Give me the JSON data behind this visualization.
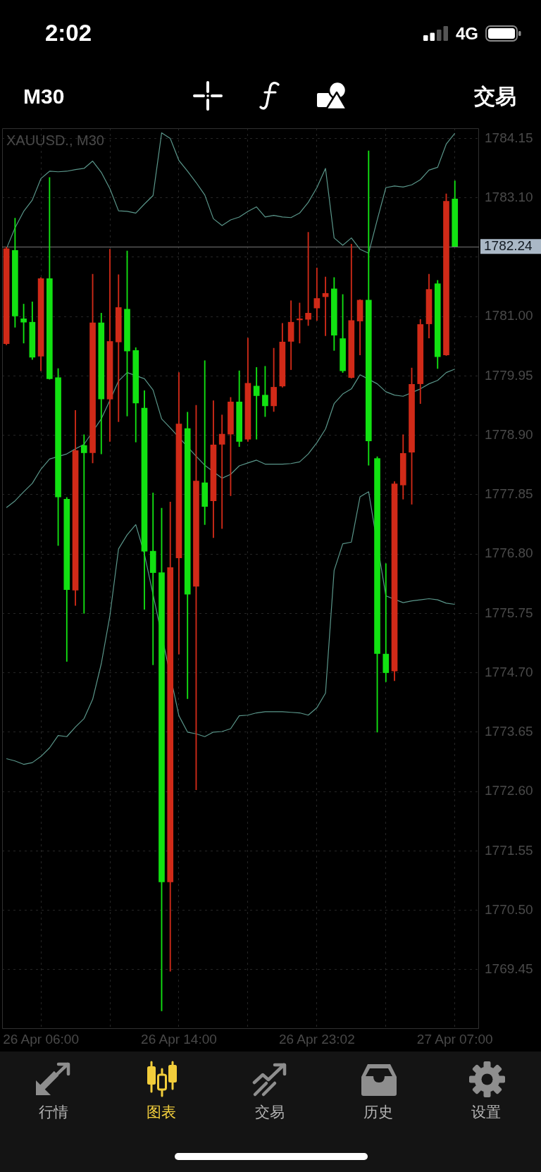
{
  "chart_data": {
    "type": "candlestick",
    "title": "XAUUSD., M30",
    "categories": [
      null,
      null,
      null,
      null,
      "26 Apr 06:00",
      null,
      null,
      null,
      null,
      null,
      null,
      null,
      null,
      null,
      null,
      null,
      null,
      null,
      null,
      null,
      "26 Apr 14:00",
      null,
      null,
      null,
      null,
      null,
      null,
      null,
      null,
      null,
      null,
      null,
      null,
      null,
      null,
      null,
      "26 Apr 23:02",
      null,
      null,
      null,
      null,
      null,
      null,
      null,
      null,
      null,
      null,
      null,
      null,
      null,
      null,
      null,
      "27 Apr 07:00"
    ],
    "ohlc": [
      [
        1780.52,
        1782.23,
        1780.5,
        1782.2
      ],
      [
        1782.17,
        1782.74,
        1780.81,
        1781.01
      ],
      [
        1780.96,
        1781.22,
        1780.53,
        1780.9
      ],
      [
        1780.9,
        1781.26,
        1780.24,
        1780.28
      ],
      [
        1780.3,
        1781.69,
        1780.04,
        1781.67
      ],
      [
        1781.67,
        1783.46,
        1779.89,
        1779.9
      ],
      [
        1779.92,
        1780.08,
        1776.95,
        1777.81
      ],
      [
        1777.77,
        1777.8,
        1774.9,
        1776.17
      ],
      [
        1776.16,
        1779.34,
        1775.89,
        1778.63
      ],
      [
        1778.72,
        1778.91,
        1775.75,
        1778.59
      ],
      [
        1778.59,
        1781.75,
        1778.41,
        1780.89
      ],
      [
        1780.89,
        1781.06,
        1778.57,
        1779.54
      ],
      [
        1779.54,
        1782.19,
        1778.79,
        1780.56
      ],
      [
        1780.55,
        1781.74,
        1779.14,
        1781.16
      ],
      [
        1781.13,
        1782.16,
        1779.24,
        1780.39
      ],
      [
        1780.4,
        1780.45,
        1778.78,
        1779.47
      ],
      [
        1779.38,
        1779.69,
        1775.82,
        1776.85
      ],
      [
        1776.85,
        1777.88,
        1774.84,
        1776.47
      ],
      [
        1776.47,
        1777.61,
        1768.72,
        1771.0
      ],
      [
        1771.0,
        1777.72,
        1769.42,
        1776.56
      ],
      [
        1776.73,
        1780.01,
        1775.03,
        1779.1
      ],
      [
        1779.02,
        1779.31,
        1774.24,
        1776.09
      ],
      [
        1776.23,
        1779.43,
        1772.63,
        1778.09
      ],
      [
        1778.06,
        1780.22,
        1777.32,
        1777.64
      ],
      [
        1777.74,
        1779.51,
        1777.09,
        1778.73
      ],
      [
        1778.74,
        1779.26,
        1777.25,
        1778.92
      ],
      [
        1778.92,
        1779.57,
        1777.83,
        1779.49
      ],
      [
        1779.49,
        1780.04,
        1778.7,
        1778.79
      ],
      [
        1778.83,
        1780.62,
        1778.79,
        1779.82
      ],
      [
        1779.77,
        1780.1,
        1778.83,
        1779.6
      ],
      [
        1779.61,
        1780.12,
        1779.23,
        1779.42
      ],
      [
        1779.42,
        1780.44,
        1779.32,
        1779.75
      ],
      [
        1779.77,
        1780.88,
        1779.75,
        1780.55
      ],
      [
        1780.56,
        1781.28,
        1780.06,
        1780.9
      ],
      [
        1780.94,
        1781.24,
        1780.53,
        1780.96
      ],
      [
        1780.95,
        1782.49,
        1780.84,
        1781.06
      ],
      [
        1781.15,
        1781.86,
        1780.93,
        1781.32
      ],
      [
        1781.35,
        1781.7,
        1780.66,
        1781.41
      ],
      [
        1781.49,
        1781.69,
        1780.4,
        1780.67
      ],
      [
        1780.61,
        1781.39,
        1780.01,
        1780.04
      ],
      [
        1779.92,
        1782.28,
        1779.91,
        1780.93
      ],
      [
        1780.92,
        1781.3,
        1780.32,
        1781.29
      ],
      [
        1781.29,
        1783.93,
        1778.37,
        1778.8
      ],
      [
        1778.49,
        1778.52,
        1773.65,
        1775.04
      ],
      [
        1775.03,
        1776.63,
        1774.54,
        1774.7
      ],
      [
        1774.73,
        1778.08,
        1774.56,
        1778.04
      ],
      [
        1778.02,
        1778.91,
        1777.77,
        1778.58
      ],
      [
        1778.6,
        1780.09,
        1777.68,
        1779.8
      ],
      [
        1779.81,
        1780.95,
        1779.46,
        1780.86
      ],
      [
        1780.87,
        1781.75,
        1780.62,
        1781.48
      ],
      [
        1781.58,
        1781.64,
        1780.08,
        1780.29
      ],
      [
        1780.32,
        1783.17,
        1780.31,
        1783.04
      ],
      [
        1783.08,
        1783.4,
        1782.24,
        1782.24
      ]
    ],
    "colors": [
      "#d02a18",
      "#12e212",
      "#12e212",
      "#12e212",
      "#d02a18",
      "#12e212",
      "#12e212",
      "#12e212",
      "#d02a18",
      "#12e212",
      "#d02a18",
      "#12e212",
      "#d02a18",
      "#d02a18",
      "#12e212",
      "#12e212",
      "#12e212",
      "#12e212",
      "#12e212",
      "#d02a18",
      "#d02a18",
      "#12e212",
      "#d02a18",
      "#12e212",
      "#d02a18",
      "#d02a18",
      "#d02a18",
      "#12e212",
      "#d02a18",
      "#12e212",
      "#12e212",
      "#d02a18",
      "#d02a18",
      "#d02a18",
      "#d02a18",
      "#d02a18",
      "#d02a18",
      "#d02a18",
      "#12e212",
      "#12e212",
      "#d02a18",
      "#d02a18",
      "#12e212",
      "#12e212",
      "#12e212",
      "#d02a18",
      "#d02a18",
      "#d02a18",
      "#d02a18",
      "#d02a18",
      "#12e212",
      "#d02a18",
      "#12e212"
    ],
    "series": [
      {
        "type": "line",
        "color": "#5a968a",
        "values": [
          1782.2,
          1782.57,
          1782.86,
          1783.06,
          1783.44,
          1783.57,
          1783.56,
          1783.57,
          1783.6,
          1783.62,
          1783.75,
          1783.55,
          1783.26,
          1782.87,
          1782.86,
          1782.83,
          1782.99,
          1783.14,
          1784.25,
          1784.15,
          1783.76,
          1783.57,
          1783.37,
          1783.15,
          1782.73,
          1782.61,
          1782.71,
          1782.76,
          1782.86,
          1782.94,
          1782.76,
          1782.79,
          1782.76,
          1782.75,
          1782.83,
          1783.02,
          1783.28,
          1783.62,
          1782.39,
          1782.26,
          1782.39,
          1782.19,
          1782.12,
          1782.71,
          1783.28,
          1783.31,
          1783.29,
          1783.33,
          1783.42,
          1783.59,
          1783.64,
          1784.05,
          1784.24
        ]
      },
      {
        "type": "line",
        "color": "#5a968a",
        "values": [
          1777.62,
          1777.74,
          1777.9,
          1778.05,
          1778.3,
          1778.48,
          null,
          1778.57,
          1778.66,
          1778.74,
          null,
          1779.19,
          1779.52,
          1779.86,
          1780.01,
          null,
          1779.9,
          1779.7,
          1779.19,
          1779.03,
          null,
          null,
          1778.53,
          1778.37,
          null,
          1778.14,
          1778.21,
          1778.36,
          1778.41,
          1778.46,
          1778.39,
          1778.39,
          1778.39,
          1778.4,
          1778.43,
          1778.57,
          1778.77,
          1779.01,
          1779.46,
          1779.63,
          1779.72,
          1779.97,
          null,
          1779.81,
          1779.67,
          1779.61,
          1779.59,
          null,
          1779.72,
          1779.81,
          1779.87,
          1780.01,
          1780.07
        ]
      },
      {
        "type": "line",
        "color": "#5a968a",
        "values": [
          1773.18,
          1773.14,
          1773.08,
          1773.11,
          1773.22,
          1773.37,
          1773.59,
          1773.57,
          1773.74,
          1773.89,
          1774.23,
          1774.86,
          1775.71,
          1776.89,
          1777.14,
          1777.32,
          1776.8,
          null,
          null,
          null,
          1773.94,
          1773.65,
          1773.62,
          1773.57,
          1773.65,
          1773.66,
          1773.71,
          1773.94,
          1773.95,
          1773.99,
          1774.01,
          1774.01,
          1774.01,
          1774.0,
          1773.99,
          1773.95,
          1774.08,
          1774.34,
          1776.51,
          1776.98,
          1777.01,
          1777.81,
          1777.9,
          null,
          1776.06,
          null,
          1775.94,
          1775.97,
          1775.99,
          1776.01,
          1775.99,
          1775.93,
          1775.91
        ]
      }
    ],
    "ylim": [
      1768.4,
      1784.33
    ],
    "yticks": [
      1769.45,
      {
        "value": 1770.5,
        "label": "1770.50"
      },
      1771.55,
      {
        "value": 1772.6,
        "label": "1772.60"
      },
      1773.65,
      {
        "value": 1774.7,
        "label": "1774.70"
      },
      1775.75,
      {
        "value": 1776.8,
        "label": "1776.80"
      },
      1777.85,
      {
        "value": 1778.9,
        "label": "1778.90"
      },
      1779.95,
      {
        "value": 1781,
        "label": "1781.00"
      },
      {
        "value": 1782.05,
        "label": null
      },
      {
        "value": 1783.1,
        "label": "1783.10"
      },
      1784.15
    ],
    "grid": true,
    "ref_lines": [
      {
        "axis": "y",
        "value": 1782.24,
        "label": "1782.24",
        "color": "#767676"
      }
    ],
    "annotations": [
      "2:02",
      "4G",
      "M30",
      "交易",
      "行情",
      "图表",
      "交易",
      "历史",
      "设置"
    ]
  }
}
